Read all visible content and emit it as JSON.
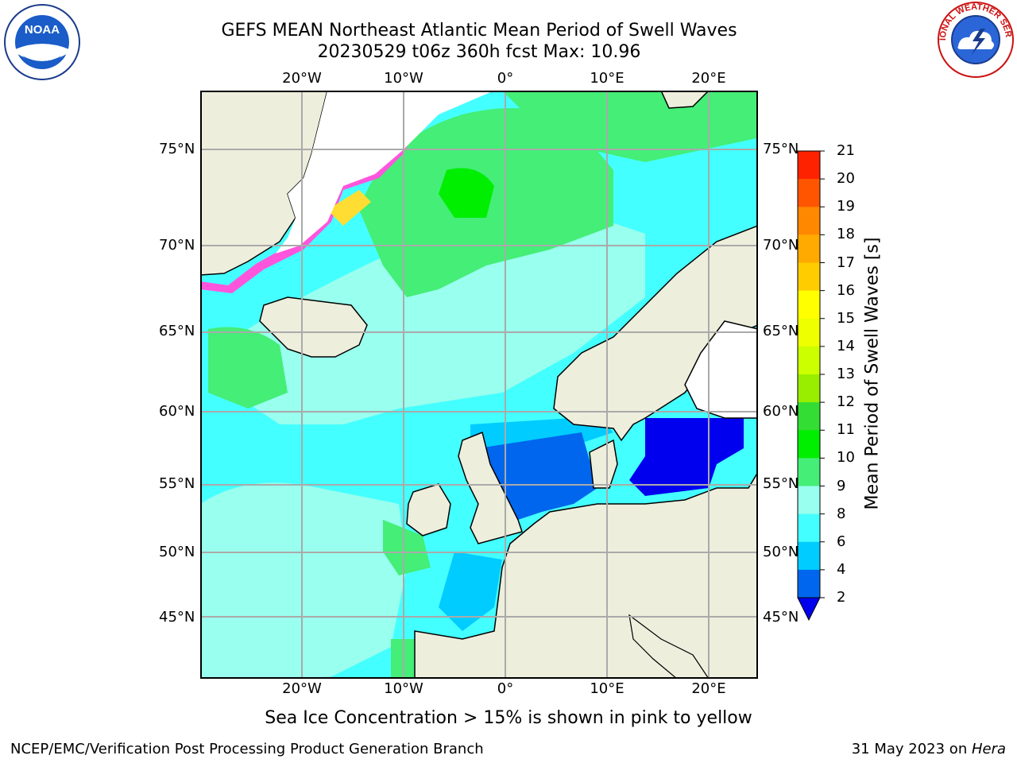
{
  "title": {
    "line1": "GEFS MEAN Northeast Atlantic Mean Period of Swell Waves",
    "line2": "20230529 t06z 360h fcst   Max: 10.96"
  },
  "logos": {
    "left": "noaa-logo",
    "right": "national-weather-service-logo",
    "left_text": "NOAA",
    "right_text": "NATIONAL WEATHER SERVICE"
  },
  "map": {
    "lon_labels": [
      "20°W",
      "10°W",
      "0°",
      "10°E",
      "20°E"
    ],
    "lat_labels": [
      "75°N",
      "70°N",
      "65°N",
      "60°N",
      "55°N",
      "50°N",
      "45°N"
    ],
    "colors": {
      "land": "#eeeedd",
      "grid": "#aaaaaa",
      "ice_pink": "#ff55dd",
      "ice_yellow": "#ffdd33"
    },
    "period_bands": [
      {
        "label": "2-4",
        "color": "#0066ee"
      },
      {
        "label": "4-6",
        "color": "#00ccff"
      },
      {
        "label": "6-8",
        "color": "#44ffff"
      },
      {
        "label": "8-9",
        "color": "#99ffee"
      },
      {
        "label": "9-10",
        "color": "#44ee77"
      },
      {
        "label": "10-11",
        "color": "#00ee00"
      },
      {
        "label": "<2",
        "color": "#0000ee"
      }
    ]
  },
  "colorbar": {
    "label": "Mean Period of Swell Waves [s]",
    "ticks": [
      "2",
      "4",
      "6",
      "8",
      "9",
      "10",
      "11",
      "12",
      "13",
      "14",
      "15",
      "16",
      "17",
      "18",
      "19",
      "20",
      "21"
    ],
    "colors": [
      "#0066ee",
      "#00ccff",
      "#44ffff",
      "#99ffee",
      "#44ee77",
      "#00ee00",
      "#33dd33",
      "#99ee00",
      "#ccff00",
      "#eeff00",
      "#ffff00",
      "#ffcc00",
      "#ffaa00",
      "#ff8800",
      "#ff5500",
      "#ff2200"
    ],
    "extend_color": "#0000ee"
  },
  "caption": "Sea Ice Concentration > 15% is shown in pink to yellow",
  "footer": {
    "credit": "NCEP/EMC/Verification Post Processing Product Generation Branch",
    "date": "31 May 2023 on ",
    "host": "Hera"
  }
}
